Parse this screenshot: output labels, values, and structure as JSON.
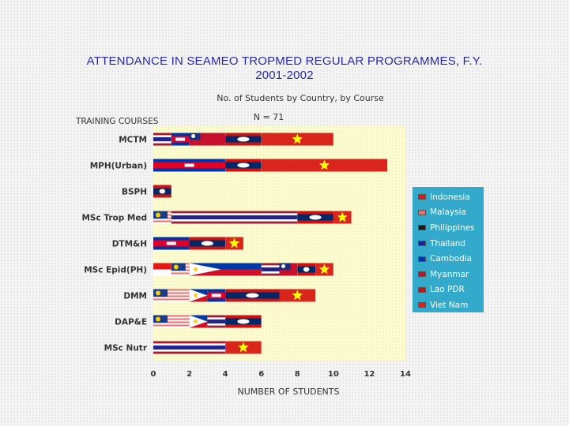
{
  "chart_data": {
    "type": "bar",
    "stacked": true,
    "orientation": "horizontal",
    "title": "ATTENDANCE IN SEAMEO TROPMED REGULAR PROGRAMMES, F.Y. 2001-2002",
    "subtitle": "No. of Students by Country, by Course",
    "note": "N = 71",
    "ylabel": "TRAINING COURSES",
    "xlabel": "NUMBER OF STUDENTS",
    "xlim": [
      0,
      14
    ],
    "xticks": [
      0,
      2,
      4,
      6,
      8,
      10,
      12,
      14
    ],
    "legend_position": "right",
    "categories": [
      "MCTM",
      "MPH(Urban)",
      "BSPH",
      "MSc Trop Med",
      "DTM&H",
      "MSc Epid(PH)",
      "DMM",
      "DAP&E",
      "MSc Nutr"
    ],
    "series": [
      {
        "name": "Indonesia",
        "color": "#e01818",
        "values": [
          0,
          0,
          0,
          0,
          0,
          1,
          0,
          0,
          0
        ]
      },
      {
        "name": "Malaysia",
        "color": "#e87070",
        "values": [
          0,
          0,
          0,
          1,
          0,
          1,
          2,
          2,
          0
        ]
      },
      {
        "name": "Philippines",
        "color": "#1a1a1a",
        "values": [
          0,
          0,
          0,
          0,
          0,
          4,
          1,
          1,
          0
        ]
      },
      {
        "name": "Thailand",
        "color": "#23238e",
        "values": [
          1,
          0,
          0,
          7,
          0,
          1,
          0,
          1,
          4
        ]
      },
      {
        "name": "Cambodia",
        "color": "#0033aa",
        "values": [
          1,
          4,
          0,
          0,
          2,
          0,
          1,
          0,
          0
        ]
      },
      {
        "name": "Myanmar",
        "color": "#c8102e",
        "values": [
          2,
          0,
          0,
          0,
          0,
          1,
          0,
          0,
          0
        ]
      },
      {
        "name": "Lao PDR",
        "color": "#cc1111",
        "values": [
          2,
          2,
          1,
          2,
          2,
          1,
          3,
          2,
          0
        ]
      },
      {
        "name": "Viet Nam",
        "color": "#da251d",
        "values": [
          4,
          7,
          0,
          1,
          1,
          1,
          2,
          0,
          2
        ]
      }
    ]
  }
}
